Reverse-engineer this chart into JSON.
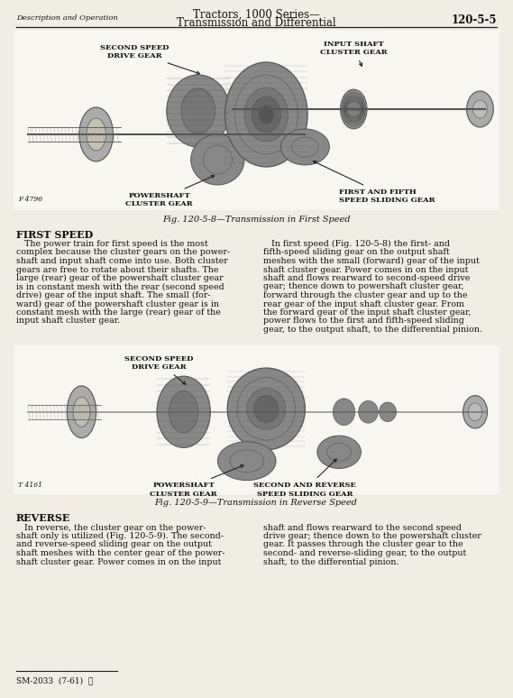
{
  "page_title_line1": "Tractors, 1000 Series—",
  "page_title_line2": "Transmission and Differential",
  "page_header_left": "Description and Operation",
  "page_number": "120-5-5",
  "fig1_caption": "Fig. 120-5-8—Transmission in First Speed",
  "fig2_caption": "Fig. 120-5-9—Transmission in Reverse Speed",
  "fig1_num": "F 4796",
  "fig2_num": "T 4161",
  "section1_title": "FIRST SPEED",
  "section1_left_lines": [
    "   The power train for first speed is the most",
    "complex because the cluster gears on the power-",
    "shaft and input shaft come into use. Both cluster",
    "gears are free to rotate about their shafts. The",
    "large (rear) gear of the powershaft cluster gear",
    "is in constant mesh with the rear (second speed",
    "drive) gear of the input shaft. The small (for-",
    "ward) gear of the powershaft cluster gear is in",
    "constant mesh with the large (rear) gear of the",
    "input shaft cluster gear."
  ],
  "section1_right_lines": [
    "   In first speed (Fig. 120-5-8) the first- and",
    "fifth-speed sliding gear on the output shaft",
    "meshes with the small (forward) gear of the input",
    "shaft cluster gear. Power comes in on the input",
    "shaft and flows rearward to second-speed drive",
    "gear; thence down to powershaft cluster gear,",
    "forward through the cluster gear and up to the",
    "rear gear of the input shaft cluster gear. From",
    "the forward gear of the input shaft cluster gear,",
    "power flows to the first and fifth-speed sliding",
    "gear, to the output shaft, to the differential pinion."
  ],
  "section2_title": "REVERSE",
  "section2_left_lines": [
    "   In reverse, the cluster gear on the power-",
    "shaft only is utilized (Fig. 120-5-9). The second-",
    "and reverse-speed sliding gear on the output",
    "shaft meshes with the center gear of the power-",
    "shaft cluster gear. Power comes in on the input"
  ],
  "section2_right_lines": [
    "shaft and flows rearward to the second speed",
    "drive gear; thence down to the powershaft cluster",
    "gear. It passes through the cluster gear to the",
    "second- and reverse-sliding gear, to the output",
    "shaft, to the differential pinion."
  ],
  "footer": "SM-2033  (7-61)",
  "bg_color": "#f0ede4",
  "text_color": "#111111",
  "line_color": "#222222",
  "gear_bg": "#dedad0",
  "gear_dark": "#555555",
  "gear_mid": "#888888",
  "gear_light": "#aaaaaa"
}
